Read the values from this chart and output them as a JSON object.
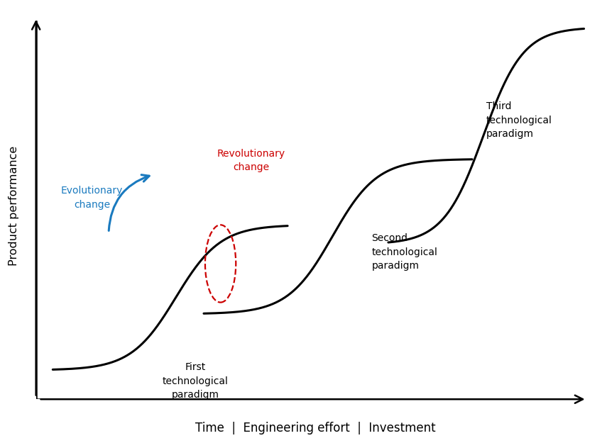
{
  "title": "",
  "xlabel": "Time  |  Engineering effort  |  Investment",
  "ylabel": "Product performance",
  "background_color": "#ffffff",
  "curve_color": "#000000",
  "curve_linewidth": 2.2,
  "label_first": "First\ntechnological\nparadigm",
  "label_second": "Second\ntechnological\nparadigm",
  "label_third": "Third\ntechnological\nparadigm",
  "label_rev": "Revolutionary\nchange",
  "label_evo": "Evolutionary\nchange",
  "label_rev_color": "#cc0000",
  "label_evo_color": "#1a7abf",
  "ellipse_color": "#cc0000",
  "arrow_color": "#1a7abf",
  "xlim": [
    0,
    10
  ],
  "ylim": [
    0,
    10
  ]
}
